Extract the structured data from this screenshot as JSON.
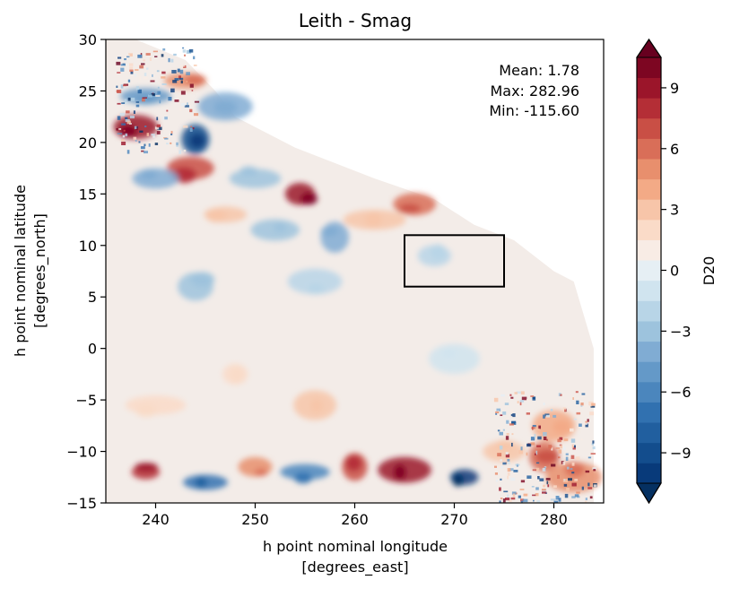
{
  "chart_data": {
    "type": "heatmap",
    "title": "Leith - Smag",
    "xlabel_line1": "h point nominal longitude",
    "xlabel_line2": "[degrees_east]",
    "ylabel_line1": "h point nominal latitude",
    "ylabel_line2": "[degrees_north]",
    "xlim": [
      235,
      285
    ],
    "ylim": [
      -15,
      30
    ],
    "xticks": [
      240,
      250,
      260,
      270,
      280
    ],
    "yticks": [
      -15,
      -10,
      -5,
      0,
      5,
      10,
      15,
      20,
      25,
      30
    ],
    "stats": {
      "mean_text": "Mean: 1.78",
      "max_text": "Max: 282.96",
      "min_text": "Min: -115.60"
    },
    "box_region": {
      "lon": [
        265,
        275
      ],
      "lat": [
        6,
        11
      ]
    },
    "colorbar": {
      "label": "D20",
      "range": [
        -10.5,
        10.5
      ],
      "level_step": 1.0,
      "extend": "both",
      "ticks": [
        -9,
        -6,
        -3,
        0,
        3,
        6,
        9
      ],
      "tick_labels": [
        "−9",
        "−6",
        "−3",
        "0",
        "3",
        "6",
        "9"
      ],
      "colors": [
        "#083a7a",
        "#134d8d",
        "#215f9f",
        "#3171b0",
        "#4b86bd",
        "#6499c8",
        "#80acd3",
        "#9dc3dd",
        "#b8d5e7",
        "#d0e4ef",
        "#e6eff4",
        "#f8ece5",
        "#fadbc8",
        "#f7c5a9",
        "#f3aa86",
        "#e88f6d",
        "#d96e58",
        "#c94f45",
        "#b42e36",
        "#9b152a",
        "#7d0622"
      ],
      "under_color": "#053061",
      "over_color": "#67001f",
      "colormap": "RdBu_r"
    },
    "features": [
      {
        "lon": 238,
        "lat": 21.5,
        "value": 9
      },
      {
        "lon": 244,
        "lat": 20.3,
        "value": -9
      },
      {
        "lon": 239,
        "lat": 24.5,
        "value": -5
      },
      {
        "lon": 243.5,
        "lat": 17.5,
        "value": 7
      },
      {
        "lon": 254.5,
        "lat": 15.0,
        "value": 9
      },
      {
        "lon": 250,
        "lat": 16.5,
        "value": -3
      },
      {
        "lon": 240,
        "lat": 16.5,
        "value": -4
      },
      {
        "lon": 258,
        "lat": 10.8,
        "value": -4
      },
      {
        "lon": 252,
        "lat": 11.5,
        "value": -3
      },
      {
        "lon": 247,
        "lat": 13.0,
        "value": 3
      },
      {
        "lon": 262,
        "lat": 12.5,
        "value": 3
      },
      {
        "lon": 266,
        "lat": 14.0,
        "value": 6
      },
      {
        "lon": 244,
        "lat": 6.0,
        "value": -3
      },
      {
        "lon": 256,
        "lat": 6.5,
        "value": -2
      },
      {
        "lon": 268,
        "lat": 9.0,
        "value": -2
      },
      {
        "lon": 248,
        "lat": -2.5,
        "value": 2
      },
      {
        "lon": 256,
        "lat": -5.5,
        "value": 3
      },
      {
        "lon": 240,
        "lat": -5.5,
        "value": 2
      },
      {
        "lon": 270,
        "lat": -1.0,
        "value": -1
      },
      {
        "lon": 239,
        "lat": -12.0,
        "value": 8
      },
      {
        "lon": 245,
        "lat": -13.0,
        "value": -7
      },
      {
        "lon": 250,
        "lat": -11.5,
        "value": 5
      },
      {
        "lon": 255,
        "lat": -12.0,
        "value": -6
      },
      {
        "lon": 260,
        "lat": -11.5,
        "value": 7
      },
      {
        "lon": 265,
        "lat": -11.8,
        "value": 9
      },
      {
        "lon": 271,
        "lat": -12.5,
        "value": -10
      },
      {
        "lon": 275,
        "lat": -10.0,
        "value": 3
      },
      {
        "lon": 279,
        "lat": -10.5,
        "value": 6
      },
      {
        "lon": 280,
        "lat": -7.5,
        "value": 4
      },
      {
        "lon": 282,
        "lat": -12.5,
        "value": 5
      },
      {
        "lon": 243,
        "lat": 26.0,
        "value": 5
      },
      {
        "lon": 247,
        "lat": 23.5,
        "value": -4
      }
    ]
  }
}
